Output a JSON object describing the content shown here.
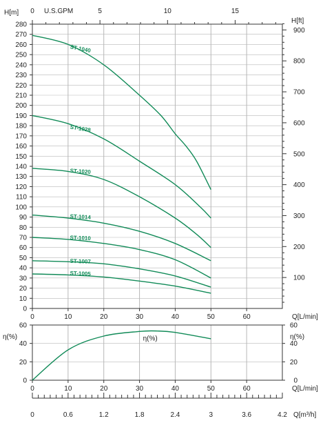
{
  "chart_data": [
    {
      "type": "line",
      "panel": "head",
      "xlabel": "Q[L/min]",
      "ylabel": "H[m]",
      "ylabel_right": "H[ft]",
      "xlabel_top": "U.S.GPM",
      "xlim": [
        0,
        70
      ],
      "ylim": [
        0,
        280
      ],
      "x_ticks": [
        "0",
        "10",
        "20",
        "30",
        "40",
        "50",
        "60"
      ],
      "y_ticks": [
        "0",
        "10",
        "20",
        "30",
        "40",
        "50",
        "60",
        "70",
        "80",
        "90",
        "100",
        "110",
        "120",
        "130",
        "140",
        "150",
        "160",
        "170",
        "180",
        "190",
        "200",
        "210",
        "220",
        "230",
        "240",
        "250",
        "260",
        "270",
        "280"
      ],
      "right_ticks": [
        "100",
        "200",
        "300",
        "400",
        "500",
        "600",
        "700",
        "800",
        "900"
      ],
      "top_ticks": [
        "0",
        "5",
        "10",
        "15"
      ],
      "grid": true,
      "series": [
        {
          "name": "ST-1040",
          "x": [
            0,
            10,
            20,
            30,
            36,
            40,
            43,
            46,
            50
          ],
          "y": [
            269,
            260,
            240,
            210,
            190,
            172,
            160,
            145,
            117
          ]
        },
        {
          "name": "ST-1028",
          "x": [
            0,
            10,
            20,
            30,
            40,
            47,
            50
          ],
          "y": [
            190,
            182,
            167,
            145,
            122,
            100,
            89
          ]
        },
        {
          "name": "ST-1020",
          "x": [
            0,
            10,
            20,
            30,
            40,
            46,
            50
          ],
          "y": [
            138,
            135,
            127,
            110,
            89,
            73,
            60
          ]
        },
        {
          "name": "ST-1014",
          "x": [
            0,
            10,
            20,
            30,
            40,
            50
          ],
          "y": [
            92,
            89,
            84,
            76,
            64,
            47
          ]
        },
        {
          "name": "ST-1010",
          "x": [
            0,
            10,
            20,
            30,
            40,
            50
          ],
          "y": [
            70,
            68,
            64,
            58,
            48,
            30
          ]
        },
        {
          "name": "ST-1007",
          "x": [
            0,
            10,
            20,
            30,
            40,
            50
          ],
          "y": [
            47,
            46,
            44,
            39,
            32,
            21
          ]
        },
        {
          "name": "ST-1005",
          "x": [
            0,
            10,
            20,
            30,
            40,
            50
          ],
          "y": [
            34,
            33,
            31,
            27,
            22,
            15
          ]
        }
      ]
    },
    {
      "type": "line",
      "panel": "efficiency",
      "xlabel": "Q[L/min]",
      "ylabel": "η(%)",
      "ylabel_right": "η(%)",
      "xlim": [
        0,
        70
      ],
      "ylim": [
        0,
        60
      ],
      "x_ticks": [
        "0",
        "10",
        "20",
        "30",
        "40",
        "50",
        "60"
      ],
      "y_ticks": [
        "0",
        "20",
        "40",
        "60"
      ],
      "grid": true,
      "series": [
        {
          "name": "η(%)",
          "x": [
            0,
            10,
            20,
            30,
            35,
            40,
            50
          ],
          "y": [
            0,
            33,
            48,
            53,
            53.5,
            52,
            45
          ]
        }
      ]
    },
    {
      "type": "axis",
      "panel": "flow-m3h",
      "xlabel": "Q[m³/h]",
      "xlim": [
        0,
        4.2
      ],
      "x_ticks": [
        "0",
        "0.6",
        "1.2",
        "1.8",
        "2.4",
        "3",
        "3.6",
        "4.2"
      ]
    }
  ],
  "colors": {
    "curve": "#108a57",
    "grid": "#b7b7b7",
    "frame": "#333333",
    "text": "#222222"
  }
}
